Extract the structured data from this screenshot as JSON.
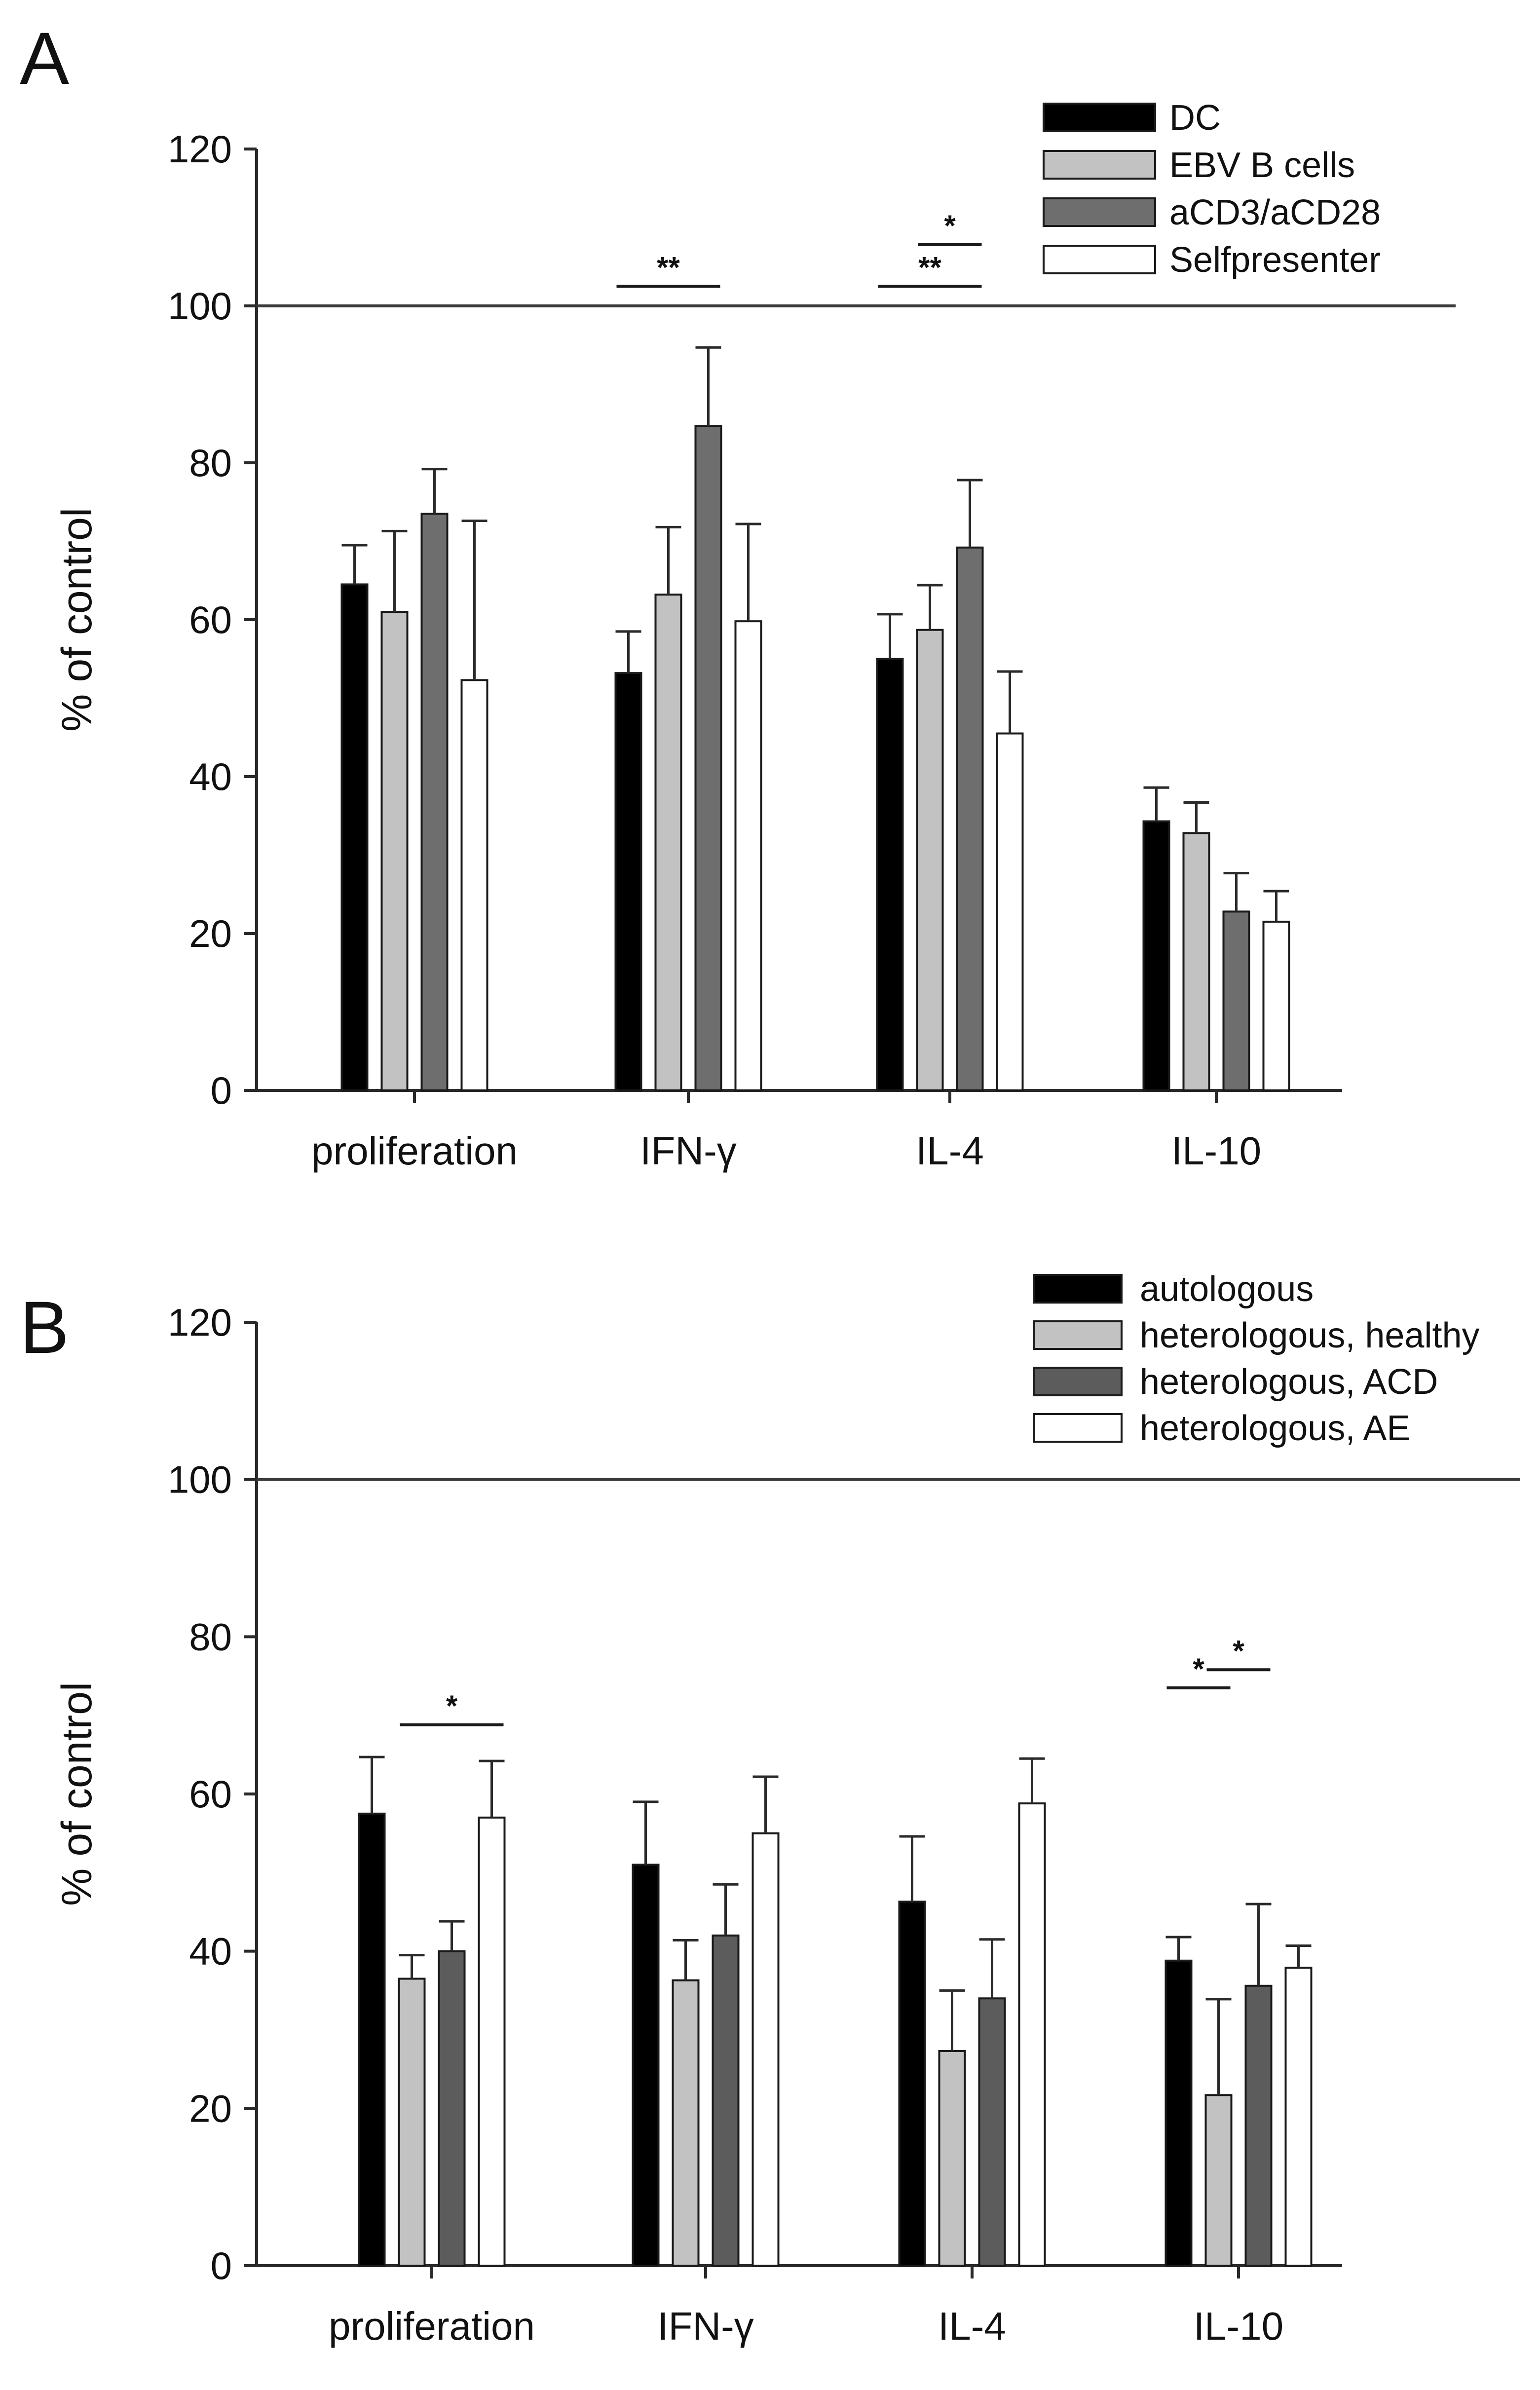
{
  "chart_data": [
    {
      "panel": "A",
      "type": "bar",
      "ylabel": "% of control",
      "ylim": [
        0,
        120
      ],
      "yticks": [
        0,
        20,
        40,
        60,
        80,
        100,
        120
      ],
      "reference_line": 100,
      "categories": [
        "proliferation",
        "IFN-γ",
        "IL-4",
        "IL-10"
      ],
      "series": [
        {
          "name": "DC",
          "color": "#000000",
          "values": [
            64.5,
            53.2,
            55.0,
            34.3
          ],
          "errors": [
            5.0,
            5.3,
            5.7,
            4.3
          ]
        },
        {
          "name": "EBV B cells",
          "color": "#c2c2c2",
          "values": [
            61.0,
            63.2,
            58.7,
            32.8
          ],
          "errors": [
            10.3,
            8.6,
            5.7,
            3.9
          ]
        },
        {
          "name": "aCD3/aCD28",
          "color": "#6e6e6e",
          "values": [
            73.5,
            84.7,
            69.2,
            22.8
          ],
          "errors": [
            5.7,
            10.0,
            8.6,
            4.9
          ]
        },
        {
          "name": "Selfpresenter",
          "color": "#ffffff",
          "values": [
            52.3,
            59.8,
            45.5,
            21.5
          ],
          "errors": [
            20.3,
            12.4,
            7.9,
            3.9
          ]
        }
      ],
      "legend_position": "top-right",
      "annotations": [
        {
          "text": "**",
          "category": "IFN-γ",
          "from_series": 0,
          "to_series": 2,
          "y": 102.5
        },
        {
          "text": "**",
          "category": "IL-4",
          "from_series": 0,
          "to_series": 2,
          "y": 102.5
        },
        {
          "text": "*",
          "category": "IL-4",
          "from_series": 1,
          "to_series": 2,
          "y": 107.8
        }
      ]
    },
    {
      "panel": "B",
      "type": "bar",
      "ylabel": "% of control",
      "ylim": [
        0,
        120
      ],
      "yticks": [
        0,
        20,
        40,
        60,
        80,
        100,
        120
      ],
      "reference_line": 100,
      "categories": [
        "proliferation",
        "IFN-γ",
        "IL-4",
        "IL-10"
      ],
      "series": [
        {
          "name": "autologous",
          "color": "#000000",
          "values": [
            57.5,
            51.0,
            46.3,
            38.8
          ],
          "errors": [
            7.2,
            8.0,
            8.3,
            3.0
          ]
        },
        {
          "name": "heterologous, healthy",
          "color": "#c2c2c2",
          "values": [
            36.5,
            36.3,
            27.3,
            21.7
          ],
          "errors": [
            3.0,
            5.1,
            7.7,
            12.2
          ]
        },
        {
          "name": "heterologous, ACD",
          "color": "#5c5c5c",
          "values": [
            40.0,
            42.0,
            34.0,
            35.6
          ],
          "errors": [
            3.8,
            6.5,
            7.5,
            10.4
          ]
        },
        {
          "name": "heterologous, AE",
          "color": "#ffffff",
          "values": [
            57.0,
            55.0,
            58.8,
            37.9
          ],
          "errors": [
            7.2,
            7.2,
            5.7,
            2.8
          ]
        }
      ],
      "legend_position": "top-right",
      "annotations": [
        {
          "text": "*",
          "category": "proliferation",
          "from_series": 1,
          "to_series": 3,
          "y": 68.8
        },
        {
          "text": "*",
          "category": "IL-10",
          "from_series": 0,
          "to_series": 1,
          "y": 73.5
        },
        {
          "text": "*",
          "category": "IL-10",
          "from_series": 1,
          "to_series": 2,
          "y": 75.8
        }
      ]
    }
  ]
}
